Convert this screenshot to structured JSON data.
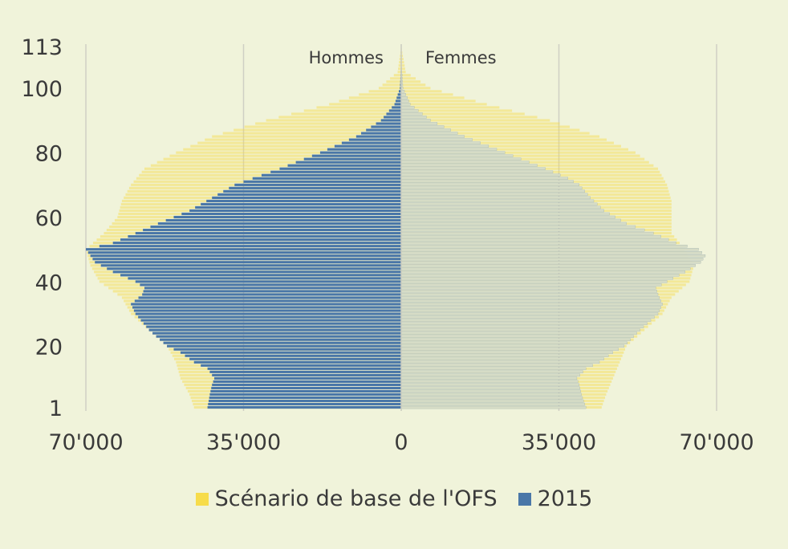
{
  "chart_data": {
    "type": "bar",
    "orientation": "horizontal-pyramid",
    "side_labels": {
      "left": "Hommes",
      "right": "Femmes"
    },
    "y_tick_labels": [
      "1",
      "20",
      "40",
      "60",
      "80",
      "100",
      "113"
    ],
    "y_tick_values": [
      1,
      20,
      40,
      60,
      80,
      100,
      113
    ],
    "x_tick_labels": [
      "70'000",
      "35'000",
      "0",
      "35'000",
      "70'000"
    ],
    "x_tick_values": [
      -70000,
      -35000,
      0,
      35000,
      70000
    ],
    "xlim": [
      -70000,
      70000
    ],
    "ylim": [
      1,
      113
    ],
    "grid": true,
    "legend_position": "bottom",
    "series": [
      {
        "name": "Scénario de base de l'OFS",
        "color": "#f7dc4a",
        "age_points": [
          1,
          5,
          10,
          15,
          20,
          25,
          30,
          35,
          40,
          45,
          50,
          55,
          60,
          65,
          70,
          75,
          80,
          85,
          90,
          95,
          100,
          105
        ],
        "male_values": [
          46000,
          47000,
          49000,
          50000,
          52000,
          56000,
          60000,
          62000,
          67000,
          69000,
          70000,
          66000,
          63000,
          62000,
          60000,
          57000,
          50000,
          42000,
          30000,
          16000,
          5000,
          800
        ],
        "female_values": [
          44500,
          45500,
          47000,
          48500,
          50000,
          54000,
          58000,
          60000,
          64000,
          65000,
          63000,
          60000,
          60000,
          60000,
          59000,
          57000,
          52000,
          44000,
          33000,
          19000,
          6500,
          1000
        ]
      },
      {
        "name": "2015",
        "color": "#4a77a8",
        "age_points": [
          1,
          5,
          8,
          10,
          13,
          15,
          18,
          20,
          25,
          30,
          33,
          36,
          38,
          40,
          43,
          46,
          48,
          50,
          52,
          55,
          58,
          62,
          66,
          70,
          72,
          75,
          80,
          85,
          90,
          95,
          100
        ],
        "male_values": [
          43000,
          42500,
          42000,
          41500,
          43000,
          46000,
          49000,
          52000,
          56000,
          59000,
          60000,
          57500,
          57000,
          59000,
          64000,
          68000,
          69000,
          70000,
          64000,
          59000,
          54000,
          47000,
          42000,
          37000,
          33000,
          27000,
          18000,
          10000,
          4500,
          1500,
          300
        ],
        "female_values": [
          41000,
          40000,
          39500,
          39000,
          41000,
          44000,
          47000,
          49500,
          53000,
          57000,
          58000,
          57000,
          56500,
          59000,
          63000,
          66500,
          67500,
          66000,
          61000,
          56000,
          50000,
          45000,
          42000,
          39500,
          37000,
          32000,
          23000,
          14000,
          6500,
          2000,
          400
        ]
      }
    ]
  }
}
